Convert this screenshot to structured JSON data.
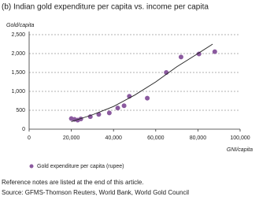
{
  "chart_data": {
    "type": "scatter",
    "title": "(b) Indian gold expenditure per capita vs. income per capita",
    "y_label": "Gold/capita",
    "x_label": "GNI/capita",
    "series": [
      {
        "name": "Gold expenditure per capita (rupee)",
        "color": "#8b5a9f",
        "x": [
          20000,
          21500,
          23000,
          24500,
          29000,
          33000,
          38000,
          42000,
          45000,
          47500,
          56000,
          65000,
          72000,
          80500,
          88000
        ],
        "values": [
          280,
          260,
          240,
          270,
          330,
          390,
          430,
          560,
          620,
          870,
          820,
          1500,
          1910,
          1990,
          2050
        ]
      }
    ],
    "trendline": {
      "color": "#222222",
      "x": [
        20000,
        30000,
        40000,
        50000,
        60000,
        70000,
        80000,
        87000
      ],
      "values": [
        200,
        380,
        600,
        900,
        1250,
        1650,
        2000,
        2250
      ]
    },
    "xlim": [
      0,
      100000
    ],
    "ylim": [
      0,
      2500
    ],
    "xticks": [
      0,
      {
        "value": 20000,
        "label": "20,000"
      },
      {
        "value": 40000,
        "label": "40,000"
      },
      {
        "value": 60000,
        "label": "60,000"
      },
      {
        "value": 80000,
        "label": "80,000"
      },
      {
        "value": 100000,
        "label": "100,000"
      }
    ],
    "yticks": [
      0,
      500,
      {
        "value": 1000,
        "label": "1,000"
      },
      {
        "value": 1500,
        "label": "1,500"
      },
      {
        "value": 2000,
        "label": "2,000"
      },
      {
        "value": 2500,
        "label": "2,500"
      }
    ],
    "grid": true,
    "notes": [
      "Reference notes are listed at the end of this article.",
      "Source: GFMS-Thomson Reuters, World Bank, World Gold Council"
    ]
  }
}
